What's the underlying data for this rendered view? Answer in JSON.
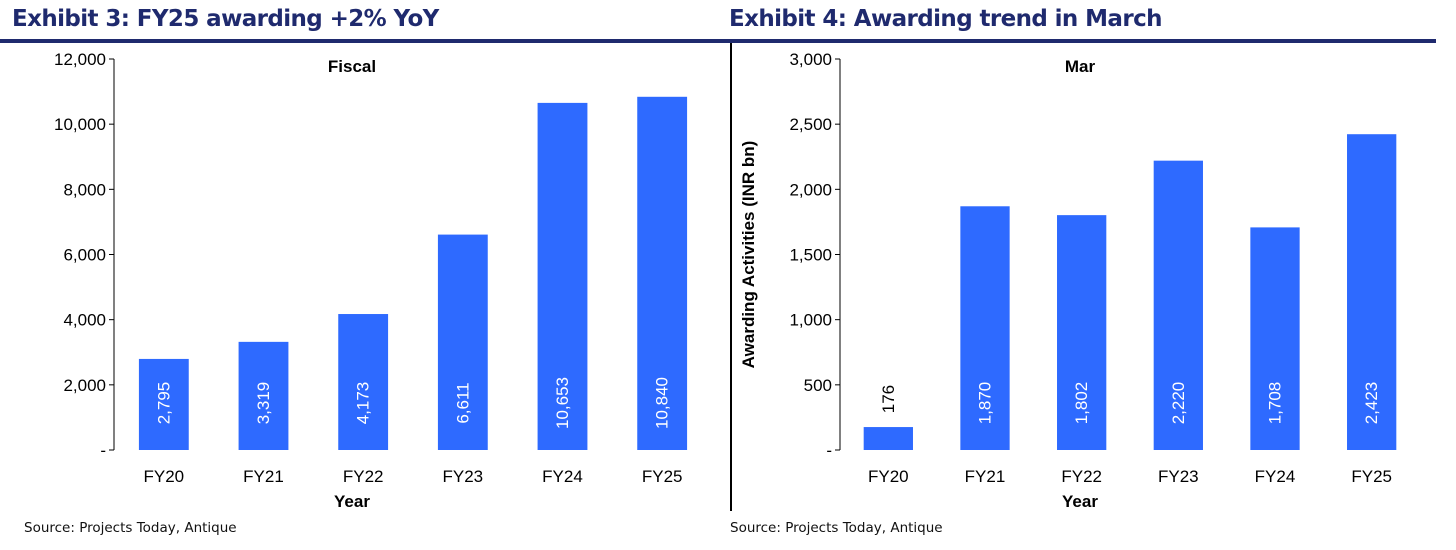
{
  "exhibits": {
    "left_title": "Exhibit 3: FY25 awarding +2% YoY",
    "right_title": "Exhibit 4: Awarding trend in March",
    "left_source": "Source: Projects Today, Antique",
    "right_source": "Source: Projects Today, Antique"
  },
  "colors": {
    "bar": "#2e6aff",
    "header": "#1f2a6e"
  },
  "chart_data": [
    {
      "type": "bar",
      "title": "Fiscal",
      "xlabel": "Year",
      "ylabel": "",
      "categories": [
        "FY20",
        "FY21",
        "FY22",
        "FY23",
        "FY24",
        "FY25"
      ],
      "values": [
        2795,
        3319,
        4173,
        6611,
        10653,
        10840
      ],
      "value_labels": [
        "2,795",
        "3,319",
        "4,173",
        "6,611",
        "10,653",
        "10,840"
      ],
      "ylim": [
        0,
        12000
      ],
      "yticks": [
        0,
        2000,
        4000,
        6000,
        8000,
        10000,
        12000
      ],
      "ytick_labels": [
        "-",
        "2,000",
        "4,000",
        "6,000",
        "8,000",
        "10,000",
        "12,000"
      ],
      "grid": false,
      "legend": "none"
    },
    {
      "type": "bar",
      "title": "Mar",
      "xlabel": "Year",
      "ylabel": "Awarding Activities (INR bn)",
      "categories": [
        "FY20",
        "FY21",
        "FY22",
        "FY23",
        "FY24",
        "FY25"
      ],
      "values": [
        176,
        1870,
        1802,
        2220,
        1708,
        2423
      ],
      "value_labels": [
        "176",
        "1,870",
        "1,802",
        "2,220",
        "1,708",
        "2,423"
      ],
      "ylim": [
        0,
        3000
      ],
      "yticks": [
        0,
        500,
        1000,
        1500,
        2000,
        2500,
        3000
      ],
      "ytick_labels": [
        "-",
        "500",
        "1,000",
        "1,500",
        "2,000",
        "2,500",
        "3,000"
      ],
      "grid": false,
      "legend": "none"
    }
  ]
}
